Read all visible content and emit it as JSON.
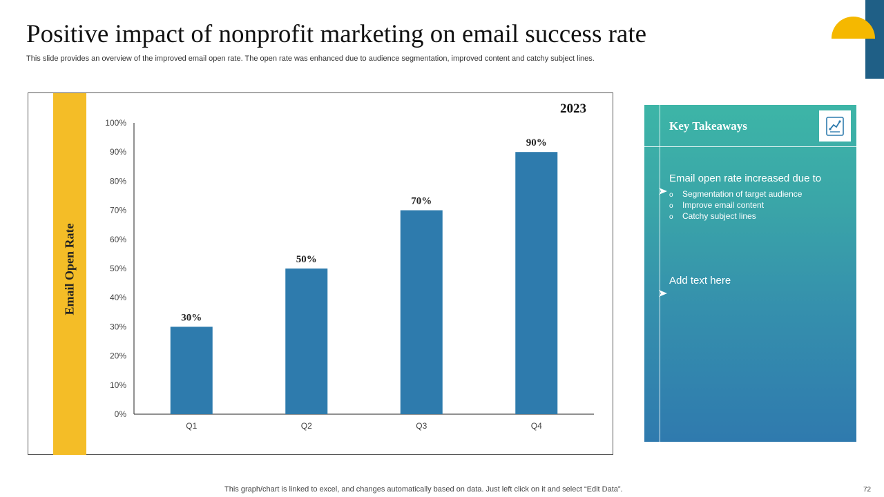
{
  "slide": {
    "title": "Positive impact of nonprofit marketing on email success rate",
    "subtitle": "This slide provides an overview of the improved email open rate. The open rate was enhanced due to audience segmentation, improved content and catchy subject lines.",
    "footer_note": "This graph/chart is linked to excel,  and changes automatically based on data. Just left click on it and select “Edit Data”.",
    "page_number": "72"
  },
  "colors": {
    "bar": "#2e7bad",
    "accent_yellow": "#f4bd27",
    "corner_blue": "#1f5f86",
    "panel_top": "#3db5a7",
    "panel_bottom": "#2f7aae"
  },
  "chart_data": {
    "type": "bar",
    "title": "2023",
    "ylabel": "Email Open Rate",
    "xlabel": "",
    "categories": [
      "Q1",
      "Q2",
      "Q3",
      "Q4"
    ],
    "values": [
      30,
      50,
      70,
      90
    ],
    "data_labels": [
      "30%",
      "50%",
      "70%",
      "90%"
    ],
    "ylim": [
      0,
      100
    ],
    "yticks": [
      "0%",
      "10%",
      "20%",
      "30%",
      "40%",
      "50%",
      "60%",
      "70%",
      "80%",
      "90%",
      "100%"
    ],
    "grid": false,
    "legend": "none"
  },
  "takeaways": {
    "title": "Key Takeaways",
    "icon": "chart-report-icon",
    "heading": "Email open rate increased due to",
    "bullets": [
      "Segmentation of target audience",
      "Improve  email content",
      "Catchy subject lines"
    ],
    "bullet_marker": "o",
    "add_text": "Add text here"
  }
}
